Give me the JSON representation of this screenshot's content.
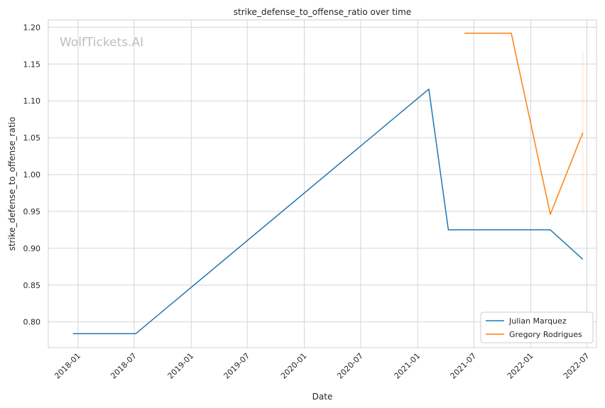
{
  "watermark": "WolfTickets.AI",
  "chart_data": {
    "type": "line",
    "title": "strike_defense_to_offense_ratio over time",
    "xlabel": "Date",
    "ylabel": "strike_defense_to_offense_ratio",
    "xlim": [
      "2017-09-27",
      "2022-08-01"
    ],
    "ylim": [
      0.765,
      1.21
    ],
    "x_ticks": [
      "2018-01",
      "2018-07",
      "2019-01",
      "2019-07",
      "2020-01",
      "2020-07",
      "2021-01",
      "2021-07",
      "2022-01",
      "2022-07"
    ],
    "y_ticks": [
      0.8,
      0.85,
      0.9,
      0.95,
      1.0,
      1.05,
      1.1,
      1.15,
      1.2
    ],
    "y_tick_labels": [
      "0.80",
      "0.85",
      "0.90",
      "0.95",
      "1.00",
      "1.05",
      "1.10",
      "1.15",
      "1.20"
    ],
    "grid": true,
    "legend_position": "bottom-right",
    "series": [
      {
        "name": "Julian Marquez",
        "color": "#1f77b4",
        "points": [
          {
            "x": "2017-12-16",
            "y": 0.784
          },
          {
            "x": "2018-07-06",
            "y": 0.784
          },
          {
            "x": "2021-02-06",
            "y": 1.116
          },
          {
            "x": "2021-04-10",
            "y": 0.925
          },
          {
            "x": "2022-03-05",
            "y": 0.925
          },
          {
            "x": "2022-06-18",
            "y": 0.885
          }
        ]
      },
      {
        "name": "Gregory Rodrigues",
        "color": "#ff7f0e",
        "points": [
          {
            "x": "2021-06-01",
            "y": 1.192
          },
          {
            "x": "2021-10-30",
            "y": 1.192
          },
          {
            "x": "2022-03-05",
            "y": 0.946
          },
          {
            "x": "2022-06-18",
            "y": 1.057
          }
        ],
        "error_band": {
          "x": "2022-06-18",
          "low": 0.946,
          "high": 1.168
        }
      }
    ]
  }
}
